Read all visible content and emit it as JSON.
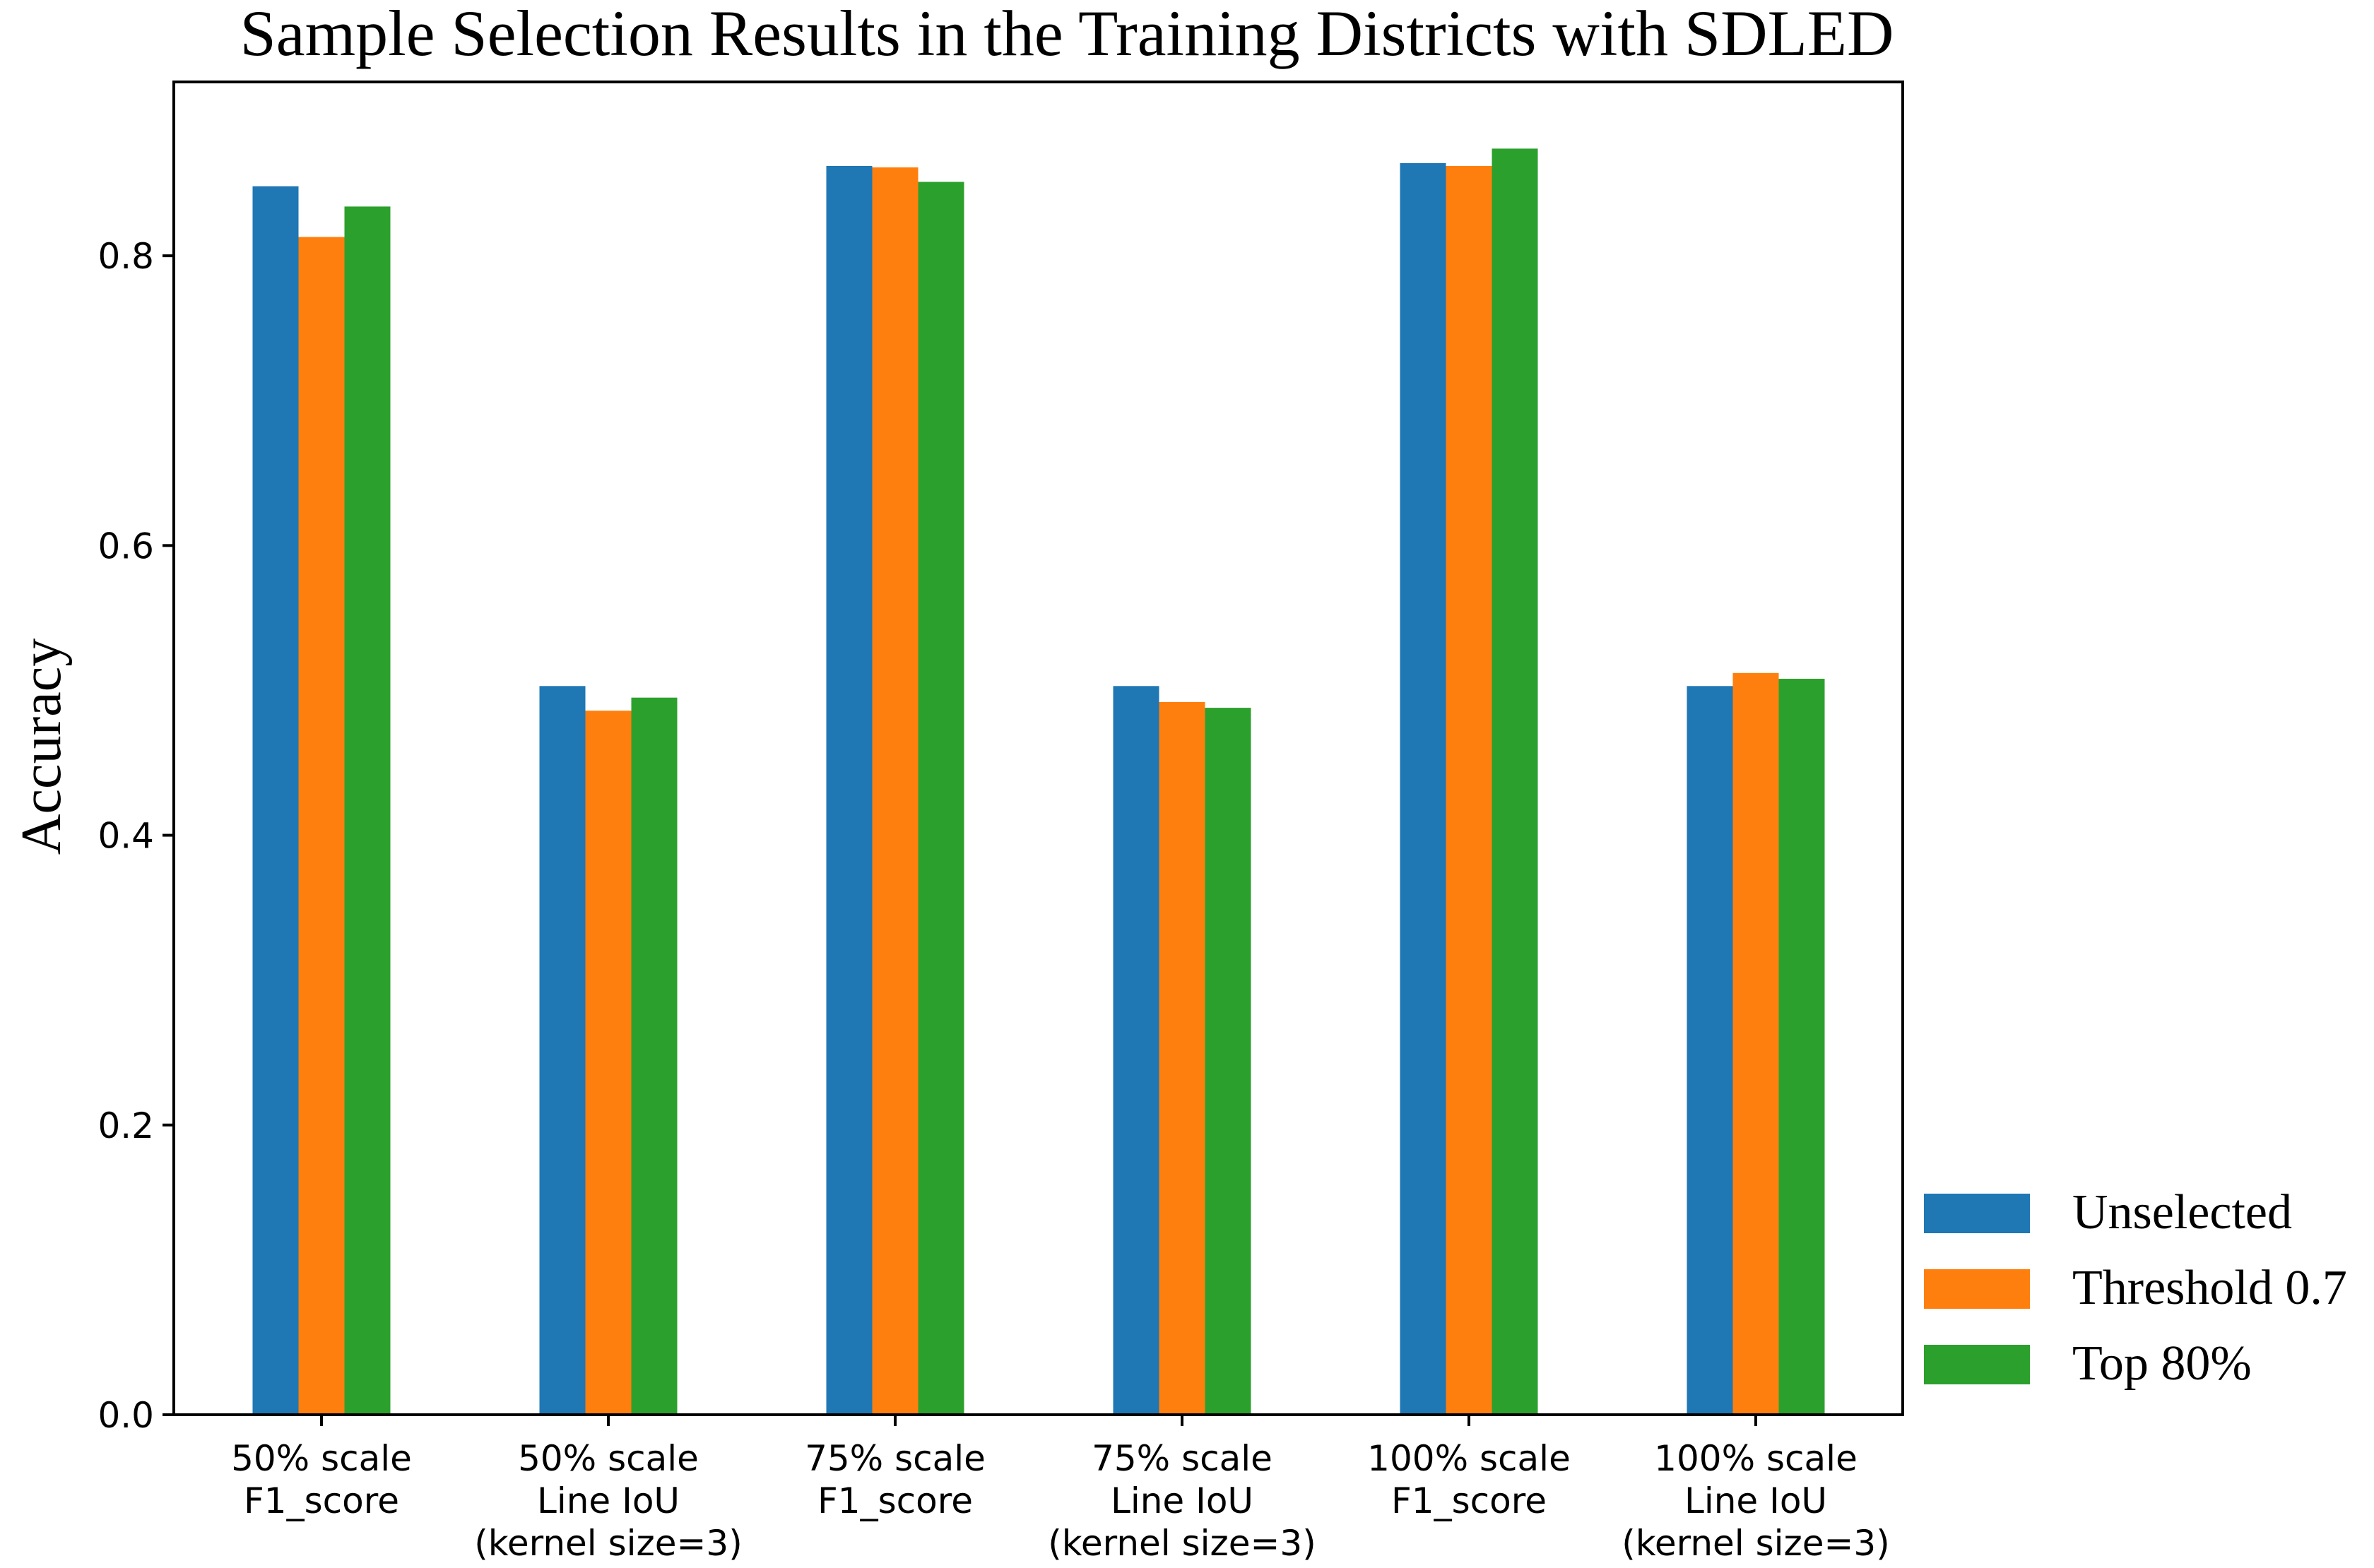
{
  "chart_data": {
    "type": "bar",
    "title": "Sample Selection Results in the Training Districts with SDLED",
    "xlabel": "",
    "ylabel": "Accuracy",
    "ylim": [
      0,
      0.92
    ],
    "yticks": [
      "0.0",
      "0.2",
      "0.4",
      "0.6",
      "0.8"
    ],
    "grid": false,
    "legend_position": "right-bottom",
    "categories": [
      [
        "50% scale",
        "F1_score"
      ],
      [
        "50% scale",
        "Line IoU",
        "(kernel size=3)"
      ],
      [
        "75% scale",
        "F1_score"
      ],
      [
        "75% scale",
        "Line IoU",
        "(kernel size=3)"
      ],
      [
        "100% scale",
        "F1_score"
      ],
      [
        "100% scale",
        "Line IoU",
        "(kernel size=3)"
      ]
    ],
    "series": [
      {
        "name": "Unselected",
        "color": "#1f77b4",
        "values": [
          0.848,
          0.503,
          0.862,
          0.503,
          0.864,
          0.503
        ]
      },
      {
        "name": "Threshold 0.7",
        "color": "#ff7f0e",
        "values": [
          0.813,
          0.486,
          0.861,
          0.492,
          0.862,
          0.512
        ]
      },
      {
        "name": "Top 80%",
        "color": "#2ca02c",
        "values": [
          0.834,
          0.495,
          0.851,
          0.488,
          0.874,
          0.508
        ]
      }
    ]
  }
}
